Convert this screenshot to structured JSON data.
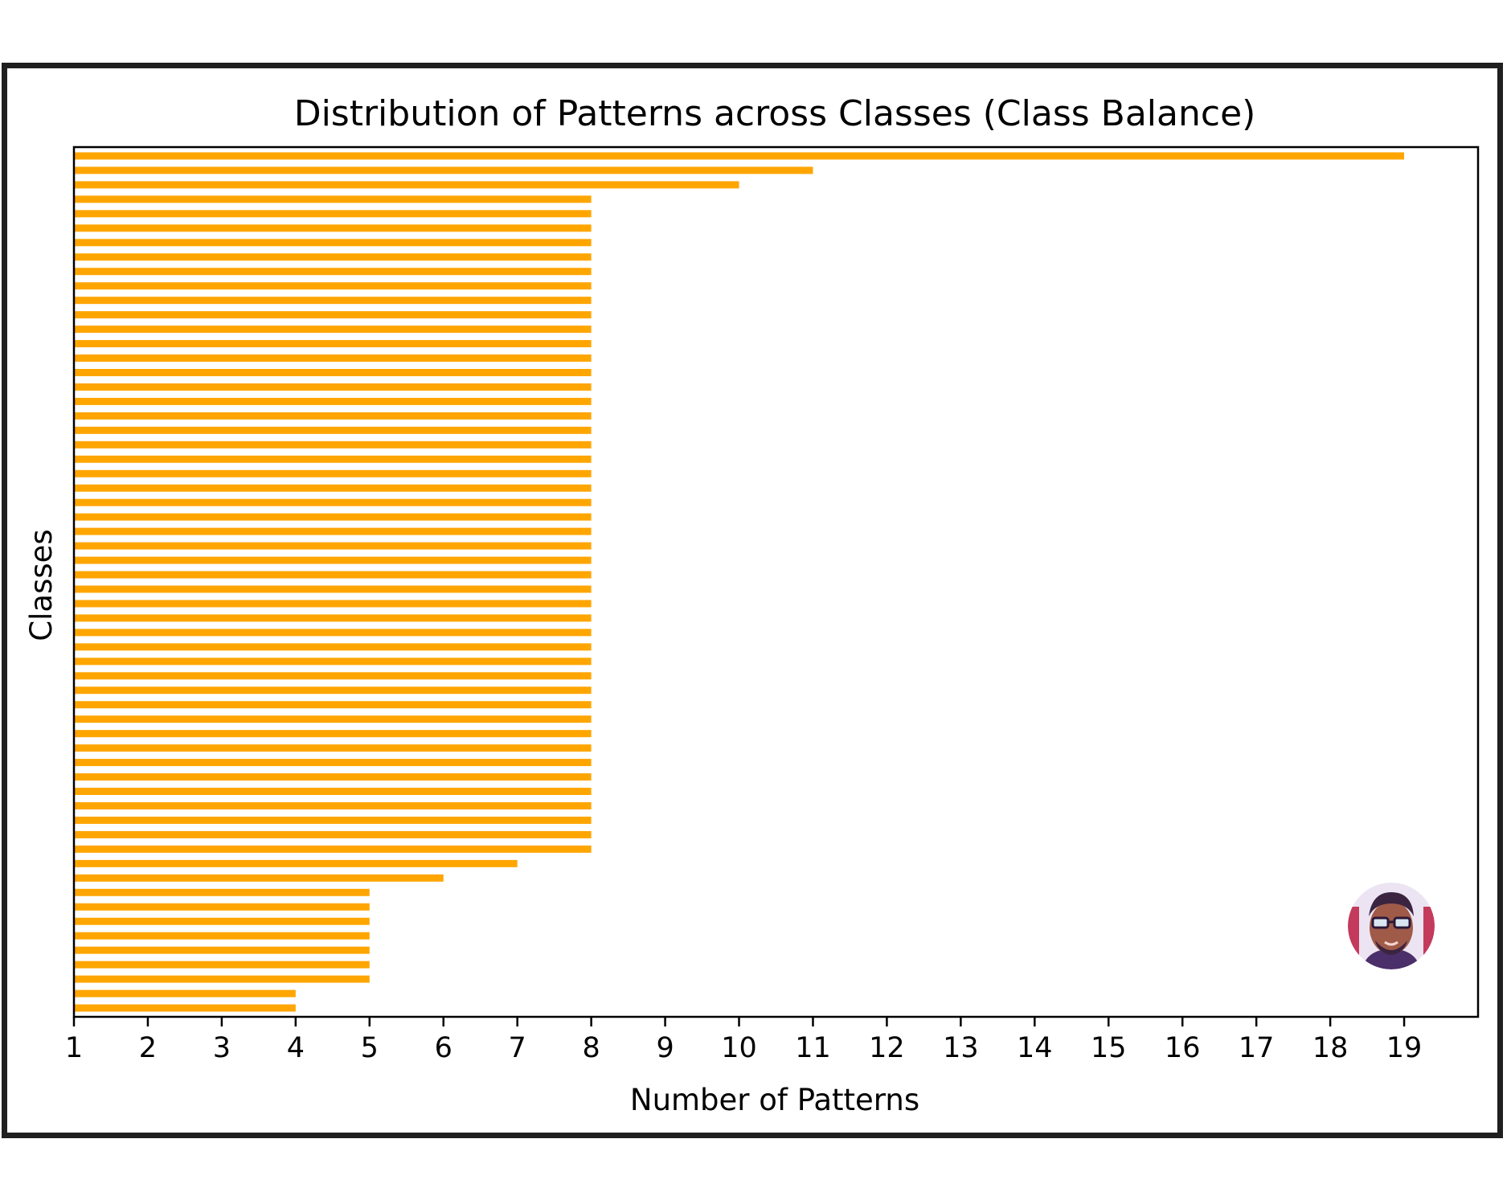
{
  "chart_data": {
    "type": "bar",
    "orientation": "horizontal",
    "title": "Distribution of Patterns across Classes (Class Balance)",
    "xlabel": "Number of Patterns",
    "ylabel": "Classes",
    "xticks": [
      1,
      2,
      3,
      4,
      5,
      6,
      7,
      8,
      9,
      10,
      11,
      12,
      13,
      14,
      15,
      16,
      17,
      18,
      19
    ],
    "xlim": [
      1,
      20
    ],
    "bar_color": "#FFA500",
    "grid": false,
    "values": [
      19,
      11,
      10,
      8,
      8,
      8,
      8,
      8,
      8,
      8,
      8,
      8,
      8,
      8,
      8,
      8,
      8,
      8,
      8,
      8,
      8,
      8,
      8,
      8,
      8,
      8,
      8,
      8,
      8,
      8,
      8,
      8,
      8,
      8,
      8,
      8,
      8,
      8,
      8,
      8,
      8,
      8,
      8,
      8,
      8,
      8,
      8,
      8,
      8,
      7,
      6,
      5,
      5,
      5,
      5,
      5,
      5,
      5,
      4,
      4
    ]
  },
  "watermark": {
    "icon": "avatar-icon"
  }
}
